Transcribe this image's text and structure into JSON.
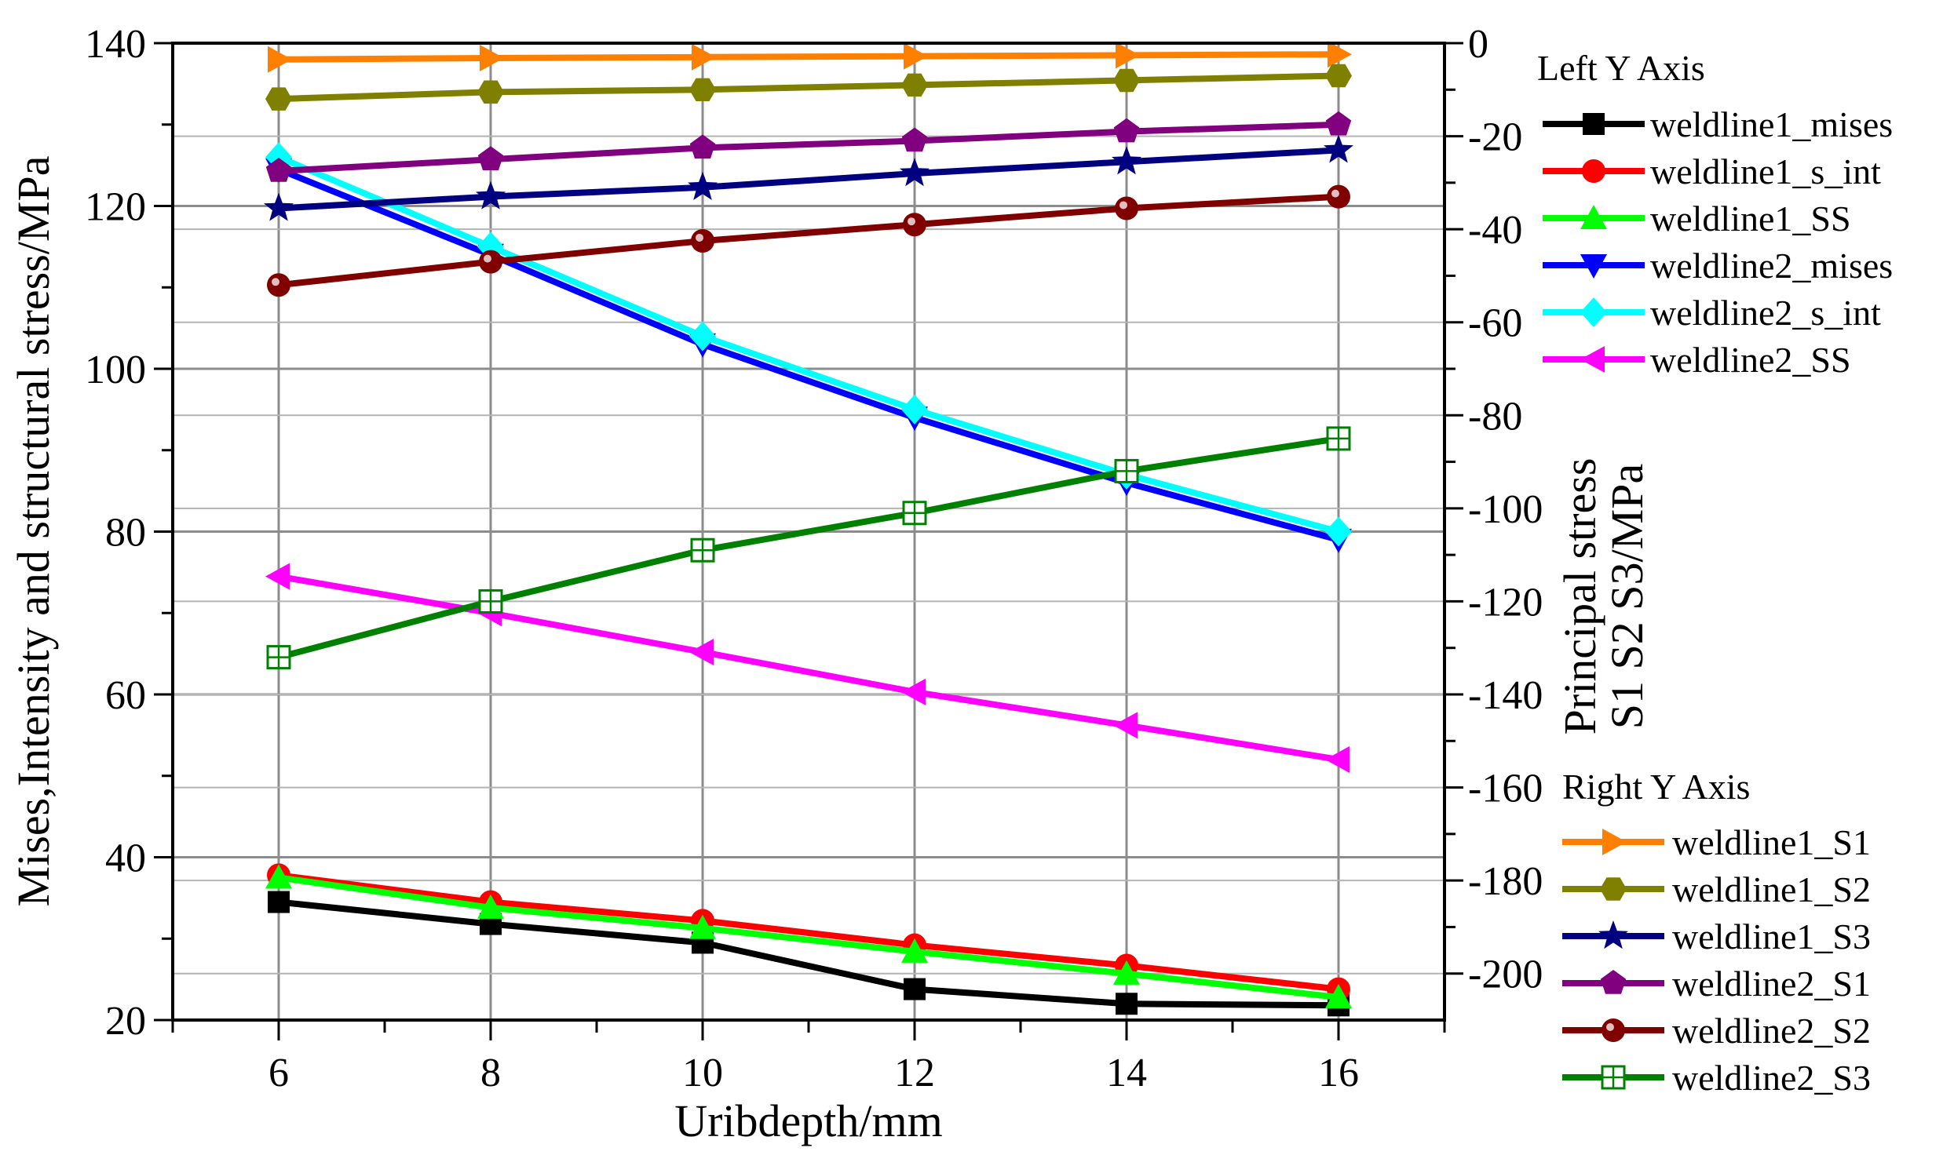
{
  "chart_data": {
    "type": "line",
    "xlabel": "Uribdepth/mm",
    "ylabel_left": "Mises,Intensity and structural stress/MPa",
    "ylabel_right": [
      "Principal stress",
      "S1 S2 S3/MPa"
    ],
    "x": [
      6,
      8,
      10,
      12,
      14,
      16
    ],
    "xlim": [
      5,
      17
    ],
    "x_ticks": [
      "6",
      "8",
      "10",
      "12",
      "14",
      "16"
    ],
    "ylim_left": [
      20,
      140
    ],
    "y_ticks_left": [
      "20",
      "40",
      "60",
      "80",
      "100",
      "120",
      "140"
    ],
    "ylim_right": [
      -210,
      0
    ],
    "y_ticks_right": [
      "0",
      "-20",
      "-40",
      "-60",
      "-80",
      "-100",
      "-120",
      "-140",
      "-160",
      "-180",
      "-200"
    ],
    "grid": true,
    "legend_left_title": "Left Y Axis",
    "legend_right_title": "Right Y Axis",
    "series": [
      {
        "name": "weldline1_mises",
        "axis": "left",
        "color": "#000000",
        "marker": "square",
        "values": [
          34.5,
          31.8,
          29.5,
          23.8,
          22.0,
          21.8
        ]
      },
      {
        "name": "weldline1_s_int",
        "axis": "left",
        "color": "#ff0000",
        "marker": "circle",
        "values": [
          37.8,
          34.5,
          32.2,
          29.2,
          26.7,
          23.8
        ]
      },
      {
        "name": "weldline1_SS",
        "axis": "left",
        "color": "#00ff00",
        "marker": "triangle-up",
        "values": [
          37.5,
          33.8,
          31.3,
          28.4,
          25.7,
          22.8
        ]
      },
      {
        "name": "weldline2_mises",
        "axis": "left",
        "color": "#0000ff",
        "marker": "triangle-down",
        "values": [
          124.5,
          114.0,
          103.0,
          94.0,
          86.0,
          79.0
        ]
      },
      {
        "name": "weldline2_s_int",
        "axis": "left",
        "color": "#00ffff",
        "marker": "diamond",
        "values": [
          126.0,
          115.0,
          104.0,
          95.0,
          87.0,
          80.0
        ]
      },
      {
        "name": "weldline2_SS",
        "axis": "left",
        "color": "#ff00ff",
        "marker": "triangle-left",
        "values": [
          74.5,
          70.0,
          65.2,
          60.3,
          56.2,
          52.0
        ]
      },
      {
        "name": "weldline1_S1",
        "axis": "right",
        "color": "#ff8000",
        "marker": "triangle-right",
        "values": [
          -3.5,
          -3.2,
          -3.0,
          -2.8,
          -2.6,
          -2.4
        ]
      },
      {
        "name": "weldline1_S2",
        "axis": "right",
        "color": "#808000",
        "marker": "hexagon",
        "values": [
          -12.0,
          -10.5,
          -10.0,
          -9.0,
          -8.0,
          -7.0
        ]
      },
      {
        "name": "weldline1_S3",
        "axis": "right",
        "color": "#000080",
        "marker": "star",
        "values": [
          -35.5,
          -33.0,
          -31.0,
          -28.0,
          -25.5,
          -23.0
        ]
      },
      {
        "name": "weldline2_S1",
        "axis": "right",
        "color": "#800080",
        "marker": "pentagon",
        "values": [
          -27.5,
          -25.0,
          -22.5,
          -21.0,
          -19.0,
          -17.5
        ]
      },
      {
        "name": "weldline2_S2",
        "axis": "right",
        "color": "#800000",
        "marker": "ball",
        "values": [
          -52.0,
          -47.0,
          -42.5,
          -39.0,
          -35.5,
          -33.0
        ]
      },
      {
        "name": "weldline2_S3",
        "axis": "right",
        "color": "#008000",
        "marker": "square-plus",
        "values": [
          -132.0,
          -120.0,
          -109.0,
          -101.0,
          -92.0,
          -85.0
        ]
      }
    ]
  }
}
